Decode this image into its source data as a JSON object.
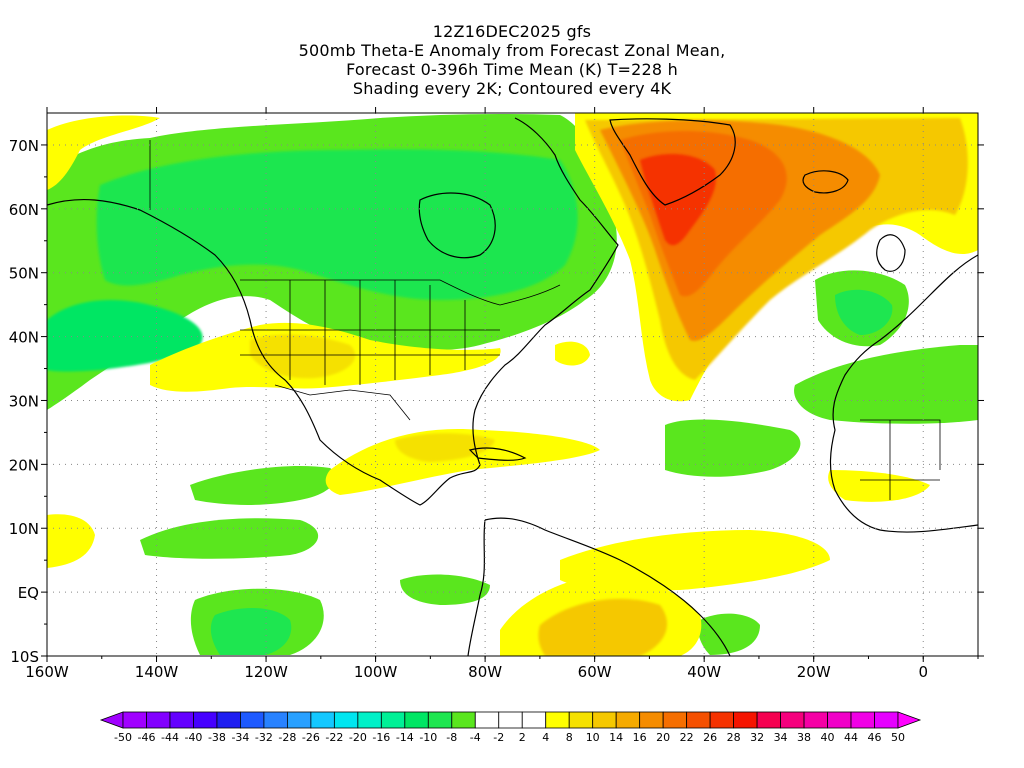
{
  "header": {
    "line1": "12Z16DEC2025 gfs",
    "line2": "500mb Theta-E Anomaly from Forecast Zonal Mean,",
    "line3": "Forecast 0-396h Time Mean (K) T=228 h",
    "line4": "Shading every 2K; Contoured every 4K"
  },
  "axes": {
    "lat_labels": [
      "70N",
      "60N",
      "50N",
      "40N",
      "30N",
      "20N",
      "10N",
      "EQ",
      "10S"
    ],
    "lon_labels": [
      "160W",
      "140W",
      "120W",
      "100W",
      "80W",
      "60W",
      "40W",
      "20W",
      "0"
    ],
    "lat_range": [
      -10,
      75
    ],
    "lon_range": [
      -160,
      10
    ],
    "grid": "dotted"
  },
  "colorbar": {
    "labels": [
      "-50",
      "-46",
      "-44",
      "-40",
      "-38",
      "-34",
      "-32",
      "-28",
      "-26",
      "-22",
      "-20",
      "-16",
      "-14",
      "-10",
      "-8",
      "-4",
      "-2",
      "2",
      "4",
      "8",
      "10",
      "14",
      "16",
      "20",
      "22",
      "26",
      "28",
      "32",
      "34",
      "38",
      "40",
      "44",
      "46",
      "50"
    ],
    "colors": [
      "#a000ff",
      "#8200ff",
      "#6400ff",
      "#4600ff",
      "#1e1ef0",
      "#1e5aff",
      "#2882ff",
      "#28a0ff",
      "#14c8ff",
      "#00e6f0",
      "#00f0c8",
      "#00f096",
      "#00e664",
      "#1ee650",
      "#5ae61e",
      "#ffffff",
      "#ffffff",
      "#ffffff",
      "#ffff00",
      "#f5e100",
      "#f5c800",
      "#f5aa00",
      "#f58c00",
      "#f56e00",
      "#f55000",
      "#f53200",
      "#f51400",
      "#f50050",
      "#f5007d",
      "#f500a5",
      "#f000c8",
      "#f000e6",
      "#e600ff"
    ]
  },
  "colors": {
    "green": "#5ae61e",
    "light_green": "#1ee650",
    "teal_green": "#00e664",
    "yellow": "#ffff00",
    "gold": "#f5e100",
    "orange": "#f58c00",
    "red": "#f53200"
  }
}
